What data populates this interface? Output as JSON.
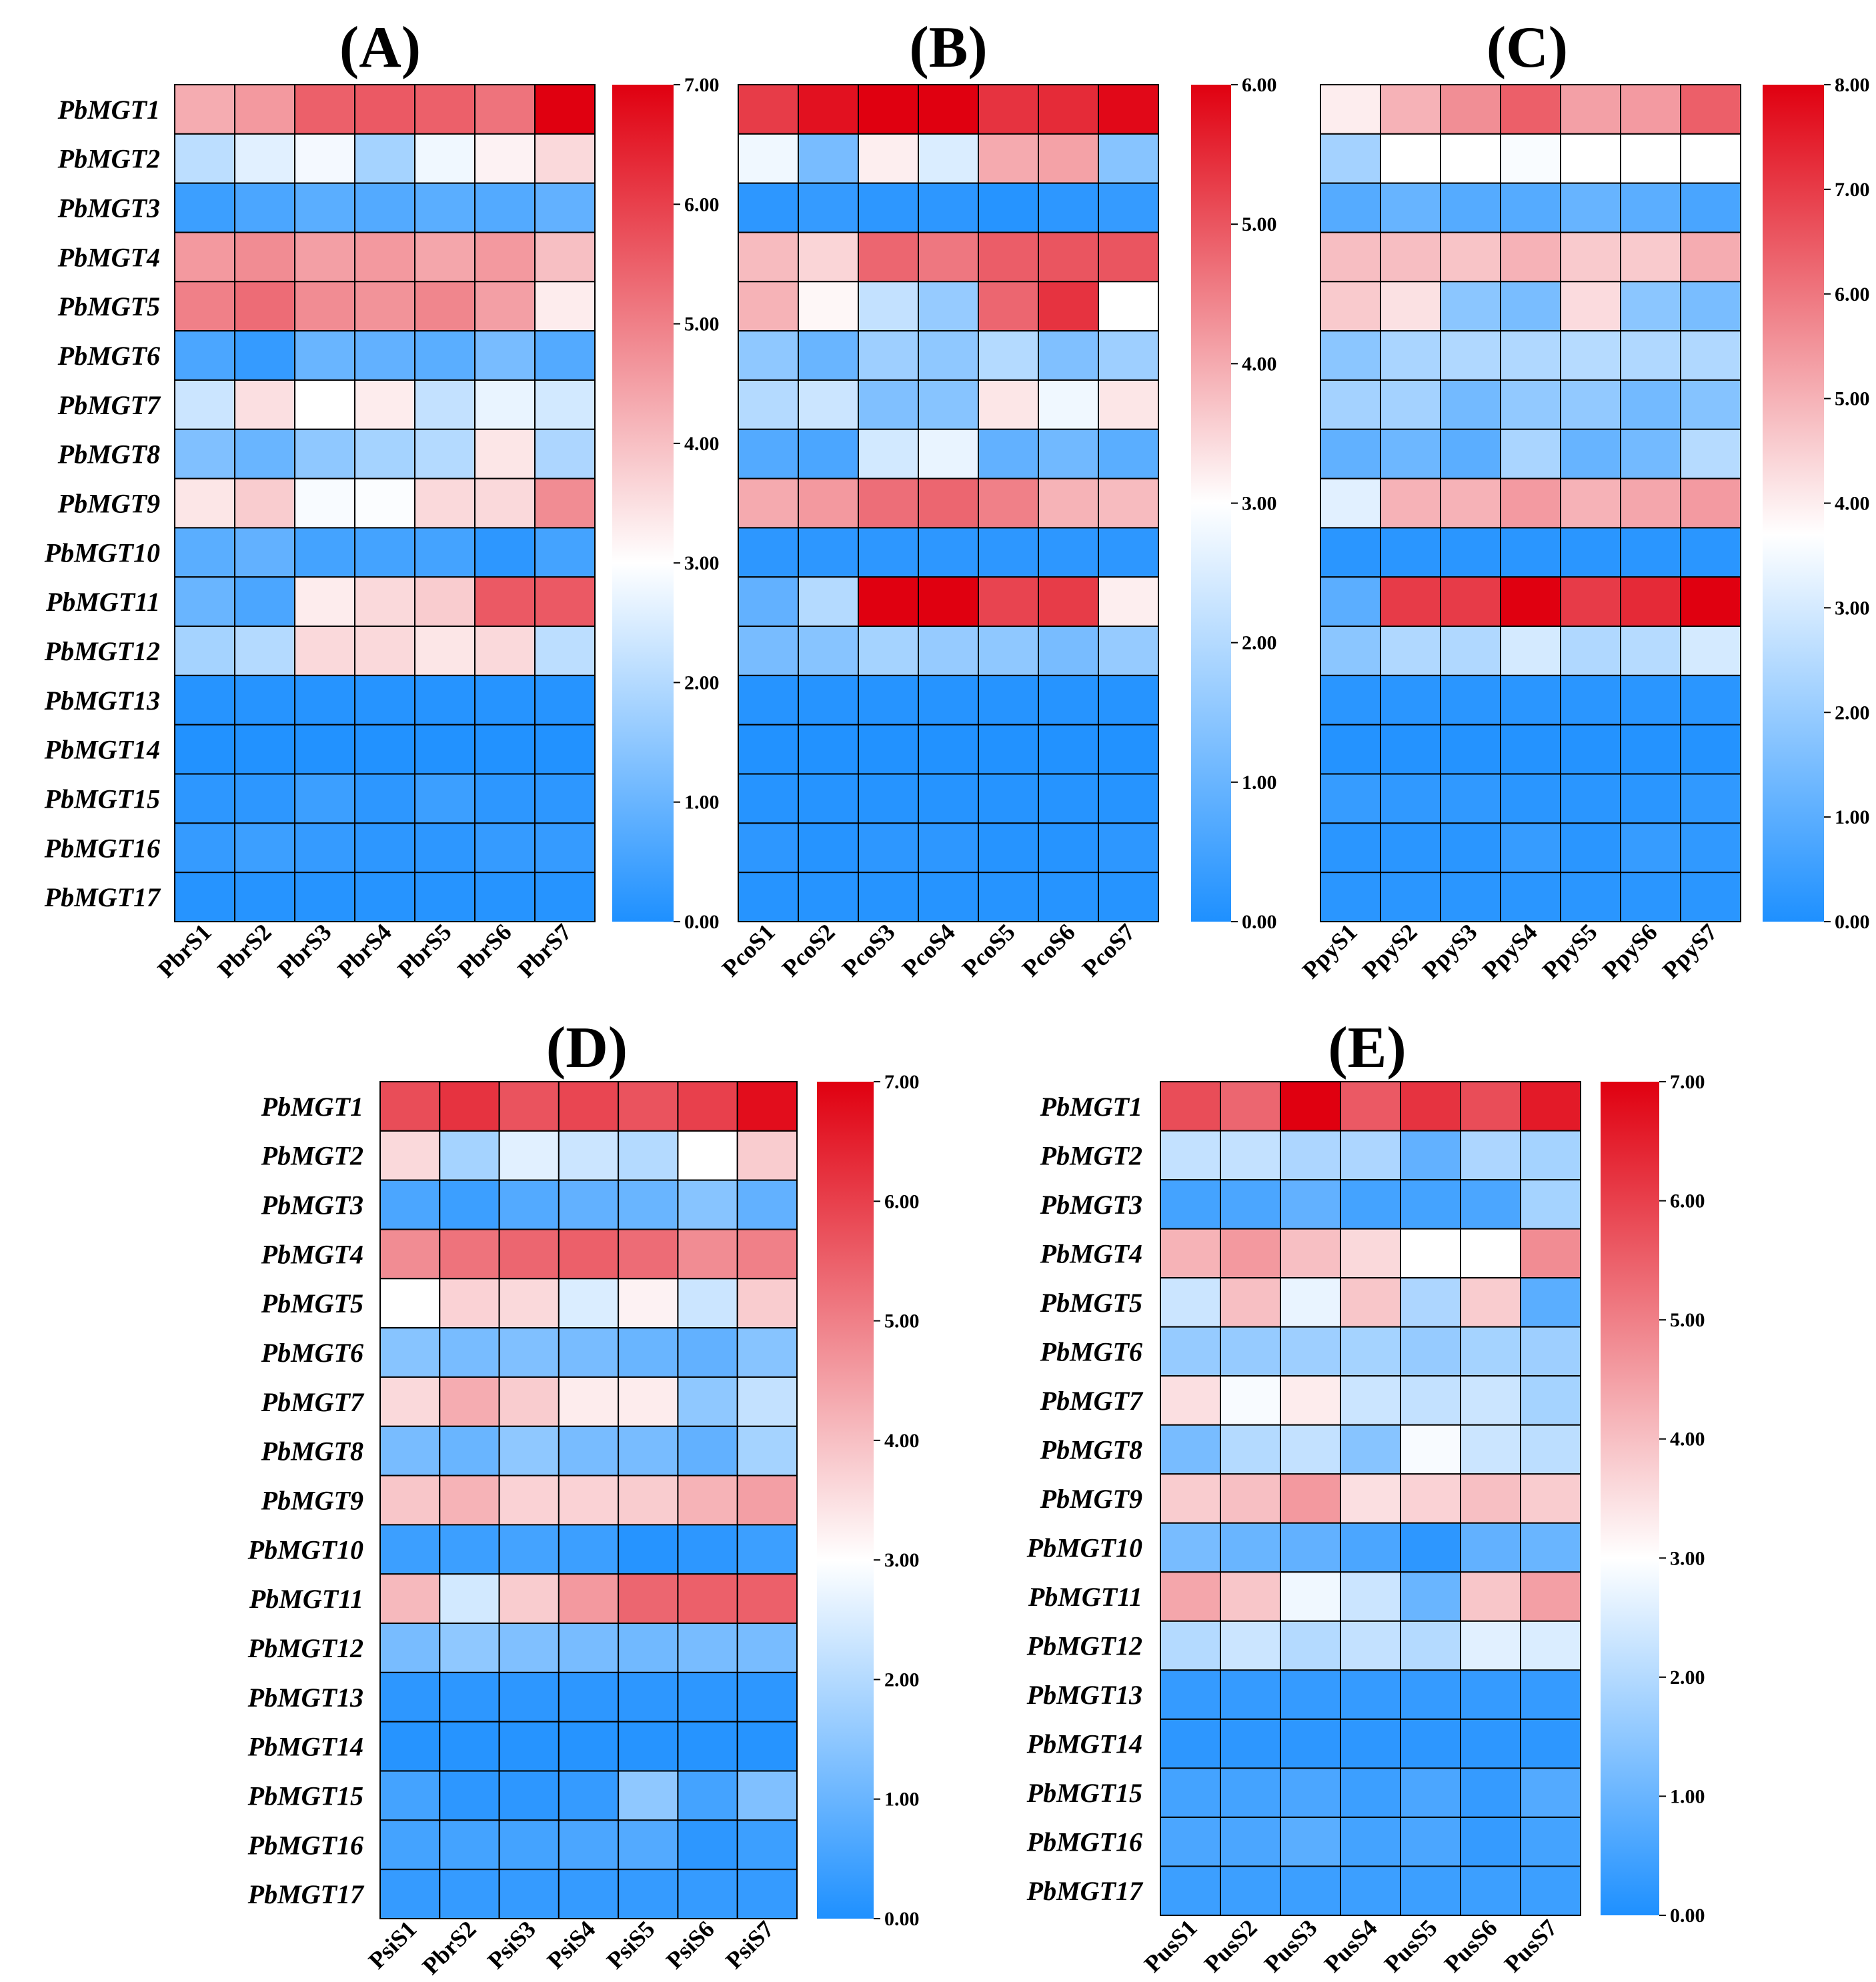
{
  "figure": {
    "colors": {
      "low": "#1E90FF",
      "mid": "#FFFFFF",
      "high": "#E00010",
      "border": "#000000"
    },
    "panels": [
      {
        "id": "A",
        "title": "(A)",
        "row_labels": [
          "PbMGT1",
          "PbMGT2",
          "PbMGT3",
          "PbMGT4",
          "PbMGT5",
          "PbMGT6",
          "PbMGT7",
          "PbMGT8",
          "PbMGT9",
          "PbMGT10",
          "PbMGT11",
          "PbMGT12",
          "PbMGT13",
          "PbMGT14",
          "PbMGT15",
          "PbMGT16",
          "PbMGT17"
        ],
        "col_labels": [
          "PbrS1",
          "PbrS2",
          "PbrS3",
          "PbrS4",
          "PbrS5",
          "PbrS6",
          "PbrS7"
        ],
        "scale": {
          "min": 0,
          "mid": 3.0,
          "max": 7.0,
          "ticks": [
            "7.00",
            "6.00",
            "5.00",
            "4.00",
            "3.00",
            "2.00",
            "1.00",
            "0.00"
          ]
        },
        "values": [
          [
            4.3,
            4.6,
            5.5,
            5.6,
            5.5,
            5.2,
            7.0
          ],
          [
            2.1,
            2.6,
            2.85,
            1.8,
            2.8,
            3.2,
            3.6
          ],
          [
            0.4,
            0.6,
            0.8,
            0.7,
            0.8,
            0.7,
            0.9
          ],
          [
            4.6,
            4.8,
            4.5,
            4.6,
            4.4,
            4.6,
            4.0
          ],
          [
            5.0,
            5.3,
            4.8,
            4.7,
            4.9,
            4.5,
            3.3
          ],
          [
            0.6,
            0.3,
            1.0,
            0.9,
            0.8,
            1.2,
            0.7
          ],
          [
            2.3,
            3.5,
            3.0,
            3.3,
            2.2,
            2.7,
            2.4
          ],
          [
            1.3,
            1.0,
            1.5,
            1.8,
            2.0,
            3.4,
            1.9
          ],
          [
            3.4,
            3.8,
            2.9,
            2.95,
            3.6,
            3.6,
            4.8
          ],
          [
            0.8,
            0.9,
            0.5,
            0.5,
            0.5,
            0.2,
            0.5
          ],
          [
            1.0,
            0.6,
            3.3,
            3.6,
            3.8,
            5.6,
            5.6
          ],
          [
            1.8,
            2.0,
            3.6,
            3.6,
            3.4,
            3.6,
            2.1
          ],
          [
            0.1,
            0.1,
            0.1,
            0.1,
            0.1,
            0.1,
            0.1
          ],
          [
            0.05,
            0.05,
            0.05,
            0.05,
            0.05,
            0.05,
            0.05
          ],
          [
            0.2,
            0.2,
            0.4,
            0.2,
            0.4,
            0.2,
            0.2
          ],
          [
            0.3,
            0.4,
            0.3,
            0.2,
            0.2,
            0.3,
            0.3
          ],
          [
            0.1,
            0.1,
            0.1,
            0.1,
            0.1,
            0.1,
            0.1
          ]
        ]
      },
      {
        "id": "B",
        "title": "(B)",
        "row_labels": [],
        "col_labels": [
          "PcoS1",
          "PcoS2",
          "PcoS3",
          "PcoS4",
          "PcoS5",
          "PcoS6",
          "PcoS7"
        ],
        "scale": {
          "min": 0,
          "mid": 3.0,
          "max": 6.0,
          "ticks": [
            "6.00",
            "5.00",
            "4.00",
            "3.00",
            "2.00",
            "1.00",
            "0.00"
          ]
        },
        "values": [
          [
            5.3,
            5.8,
            6.0,
            6.0,
            5.4,
            5.5,
            5.9
          ],
          [
            2.8,
            1.2,
            3.2,
            2.5,
            4.0,
            4.1,
            1.4
          ],
          [
            0.2,
            0.3,
            0.2,
            0.2,
            0.1,
            0.2,
            0.3
          ],
          [
            3.8,
            3.5,
            4.8,
            4.6,
            4.9,
            5.0,
            5.0
          ],
          [
            3.9,
            3.1,
            2.2,
            1.6,
            4.8,
            5.4,
            3.0
          ],
          [
            1.5,
            1.0,
            1.7,
            1.5,
            2.0,
            1.3,
            1.7
          ],
          [
            2.0,
            2.3,
            1.3,
            1.4,
            3.3,
            2.8,
            3.3
          ],
          [
            0.7,
            0.6,
            2.4,
            2.7,
            0.9,
            1.1,
            0.8
          ],
          [
            4.0,
            4.2,
            4.7,
            4.8,
            4.5,
            3.9,
            3.8
          ],
          [
            0.2,
            0.2,
            0.2,
            0.2,
            0.2,
            0.2,
            0.2
          ],
          [
            0.9,
            2.0,
            6.0,
            6.0,
            5.2,
            5.3,
            3.2
          ],
          [
            1.2,
            1.4,
            1.8,
            1.6,
            1.5,
            1.2,
            1.6
          ],
          [
            0.1,
            0.1,
            0.1,
            0.1,
            0.1,
            0.1,
            0.1
          ],
          [
            0.05,
            0.05,
            0.05,
            0.05,
            0.05,
            0.05,
            0.05
          ],
          [
            0.1,
            0.1,
            0.1,
            0.1,
            0.1,
            0.1,
            0.1
          ],
          [
            0.2,
            0.1,
            0.2,
            0.2,
            0.1,
            0.1,
            0.2
          ],
          [
            0.1,
            0.1,
            0.1,
            0.1,
            0.1,
            0.1,
            0.1
          ]
        ]
      },
      {
        "id": "C",
        "title": "(C)",
        "row_labels": [],
        "col_labels": [
          "PpyS1",
          "PpyS2",
          "PpyS3",
          "PpyS4",
          "PpyS5",
          "PpyS6",
          "PpyS7"
        ],
        "scale": {
          "min": 0,
          "mid": 3.7,
          "max": 8.0,
          "ticks": [
            "8.00",
            "7.00",
            "6.00",
            "5.00",
            "4.00",
            "3.00",
            "2.00",
            "1.00",
            "0.00"
          ]
        },
        "values": [
          [
            4.0,
            5.0,
            5.6,
            6.4,
            5.3,
            5.4,
            6.4
          ],
          [
            2.2,
            3.7,
            3.7,
            3.6,
            3.7,
            3.7,
            3.7
          ],
          [
            0.9,
            1.2,
            0.9,
            0.9,
            1.2,
            1.0,
            0.7
          ],
          [
            4.8,
            4.8,
            4.7,
            5.0,
            4.6,
            4.6,
            5.1
          ],
          [
            4.6,
            4.2,
            1.8,
            1.5,
            4.3,
            1.8,
            1.5
          ],
          [
            1.8,
            2.3,
            2.4,
            2.4,
            2.5,
            2.4,
            2.4
          ],
          [
            2.2,
            2.2,
            1.4,
            1.9,
            1.9,
            1.4,
            1.7
          ],
          [
            1.1,
            1.3,
            1.0,
            2.3,
            1.2,
            1.4,
            2.5
          ],
          [
            3.2,
            5.0,
            5.0,
            5.4,
            5.0,
            5.2,
            5.4
          ],
          [
            0.2,
            0.2,
            0.2,
            0.2,
            0.2,
            0.2,
            0.2
          ],
          [
            1.0,
            7.0,
            7.0,
            8.0,
            7.0,
            7.3,
            8.0
          ],
          [
            1.8,
            2.4,
            2.4,
            3.0,
            2.4,
            2.5,
            3.0
          ],
          [
            0.2,
            0.2,
            0.2,
            0.2,
            0.2,
            0.2,
            0.2
          ],
          [
            0.1,
            0.1,
            0.1,
            0.1,
            0.1,
            0.1,
            0.1
          ],
          [
            0.4,
            0.3,
            0.3,
            0.2,
            0.2,
            0.2,
            0.3
          ],
          [
            0.2,
            0.2,
            0.2,
            0.4,
            0.2,
            0.4,
            0.3
          ],
          [
            0.2,
            0.2,
            0.2,
            0.2,
            0.2,
            0.2,
            0.2
          ]
        ]
      },
      {
        "id": "D",
        "title": "(D)",
        "row_labels": [
          "PbMGT1",
          "PbMGT2",
          "PbMGT3",
          "PbMGT4",
          "PbMGT5",
          "PbMGT6",
          "PbMGT7",
          "PbMGT8",
          "PbMGT9",
          "PbMGT10",
          "PbMGT11",
          "PbMGT12",
          "PbMGT13",
          "PbMGT14",
          "PbMGT15",
          "PbMGT16",
          "PbMGT17"
        ],
        "col_labels": [
          "PsiS1",
          "PbrS2",
          "PsiS3",
          "PsiS4",
          "PsiS5",
          "PsiS6",
          "PsiS7"
        ],
        "scale": {
          "min": 0,
          "mid": 3.0,
          "max": 7.0,
          "ticks": [
            "7.00",
            "6.00",
            "5.00",
            "4.00",
            "3.00",
            "2.00",
            "1.00",
            "0.00"
          ]
        },
        "values": [
          [
            5.8,
            6.2,
            5.7,
            5.9,
            5.7,
            6.0,
            6.8
          ],
          [
            3.6,
            1.8,
            2.6,
            2.3,
            2.0,
            3.0,
            3.8
          ],
          [
            0.6,
            0.4,
            0.7,
            0.9,
            1.0,
            1.4,
            0.9
          ],
          [
            4.8,
            5.2,
            5.4,
            5.5,
            5.3,
            4.8,
            5.0
          ],
          [
            3.0,
            3.7,
            3.6,
            2.5,
            3.2,
            2.3,
            3.8
          ],
          [
            1.4,
            1.2,
            1.3,
            1.2,
            1.0,
            0.9,
            1.4
          ],
          [
            3.6,
            4.3,
            3.8,
            3.3,
            3.3,
            1.5,
            2.2
          ],
          [
            1.2,
            1.0,
            1.5,
            1.2,
            1.2,
            0.9,
            1.8
          ],
          [
            3.9,
            4.2,
            3.7,
            3.7,
            3.8,
            4.2,
            4.5
          ],
          [
            0.4,
            0.4,
            0.5,
            0.4,
            0.1,
            0.2,
            0.4
          ],
          [
            4.1,
            2.4,
            3.8,
            4.6,
            5.4,
            5.5,
            5.5
          ],
          [
            1.2,
            1.5,
            1.3,
            1.2,
            1.1,
            1.2,
            1.2
          ],
          [
            0.2,
            0.2,
            0.2,
            0.2,
            0.2,
            0.2,
            0.2
          ],
          [
            0.1,
            0.1,
            0.1,
            0.1,
            0.1,
            0.1,
            0.1
          ],
          [
            0.5,
            0.2,
            0.2,
            0.3,
            1.5,
            0.5,
            1.3
          ],
          [
            0.5,
            0.5,
            0.5,
            0.6,
            0.7,
            0.2,
            0.4
          ],
          [
            0.3,
            0.3,
            0.3,
            0.3,
            0.3,
            0.3,
            0.3
          ]
        ]
      },
      {
        "id": "E",
        "title": "(E)",
        "row_labels": [
          "PbMGT1",
          "PbMGT2",
          "PbMGT3",
          "PbMGT4",
          "PbMGT5",
          "PbMGT6",
          "PbMGT7",
          "PbMGT8",
          "PbMGT9",
          "PbMGT10",
          "PbMGT11",
          "PbMGT12",
          "PbMGT13",
          "PbMGT14",
          "PbMGT15",
          "PbMGT16",
          "PbMGT17"
        ],
        "col_labels": [
          "PusS1",
          "PusS2",
          "PusS3",
          "PusS4",
          "PusS5",
          "PusS6",
          "PusS7"
        ],
        "scale": {
          "min": 0,
          "mid": 3.0,
          "max": 7.0,
          "ticks": [
            "7.00",
            "6.00",
            "5.00",
            "4.00",
            "3.00",
            "2.00",
            "1.00",
            "0.00"
          ]
        },
        "values": [
          [
            5.8,
            5.4,
            7.0,
            5.6,
            6.2,
            5.8,
            6.6
          ],
          [
            2.2,
            2.2,
            1.9,
            1.9,
            0.9,
            1.9,
            1.8
          ],
          [
            0.5,
            0.6,
            0.9,
            0.5,
            0.5,
            0.6,
            1.8
          ],
          [
            4.2,
            4.6,
            4.0,
            3.6,
            3.0,
            3.0,
            4.8
          ],
          [
            2.3,
            4.0,
            2.7,
            3.9,
            1.9,
            3.8,
            0.8
          ],
          [
            1.6,
            1.6,
            1.7,
            1.8,
            1.6,
            1.8,
            1.7
          ],
          [
            3.5,
            2.9,
            3.3,
            2.3,
            2.2,
            2.3,
            1.8
          ],
          [
            1.2,
            2.0,
            2.2,
            1.4,
            2.9,
            2.3,
            2.1
          ],
          [
            3.8,
            4.0,
            4.6,
            3.5,
            3.7,
            4.0,
            3.8
          ],
          [
            1.2,
            1.0,
            0.9,
            0.6,
            0.2,
            0.9,
            1.0
          ],
          [
            4.4,
            3.9,
            2.8,
            2.3,
            1.0,
            3.9,
            4.5
          ],
          [
            2.0,
            2.3,
            2.0,
            2.2,
            2.0,
            2.6,
            2.5
          ],
          [
            0.3,
            0.3,
            0.3,
            0.3,
            0.3,
            0.3,
            0.3
          ],
          [
            0.2,
            0.2,
            0.2,
            0.2,
            0.2,
            0.2,
            0.2
          ],
          [
            0.5,
            0.5,
            0.6,
            0.4,
            0.6,
            0.3,
            0.7
          ],
          [
            0.6,
            0.6,
            0.8,
            0.5,
            0.6,
            0.3,
            0.5
          ],
          [
            0.4,
            0.4,
            0.4,
            0.4,
            0.4,
            0.4,
            0.4
          ]
        ]
      }
    ]
  },
  "chart_data": [
    {
      "type": "heatmap",
      "title": "(A)",
      "y": [
        "PbMGT1",
        "PbMGT2",
        "PbMGT3",
        "PbMGT4",
        "PbMGT5",
        "PbMGT6",
        "PbMGT7",
        "PbMGT8",
        "PbMGT9",
        "PbMGT10",
        "PbMGT11",
        "PbMGT12",
        "PbMGT13",
        "PbMGT14",
        "PbMGT15",
        "PbMGT16",
        "PbMGT17"
      ],
      "x": [
        "PbrS1",
        "PbrS2",
        "PbrS3",
        "PbrS4",
        "PbrS5",
        "PbrS6",
        "PbrS7"
      ],
      "colorbar_range": [
        0,
        7
      ],
      "colorscale": "blue-white-red"
    },
    {
      "type": "heatmap",
      "title": "(B)",
      "y": [
        "PbMGT1",
        "PbMGT2",
        "PbMGT3",
        "PbMGT4",
        "PbMGT5",
        "PbMGT6",
        "PbMGT7",
        "PbMGT8",
        "PbMGT9",
        "PbMGT10",
        "PbMGT11",
        "PbMGT12",
        "PbMGT13",
        "PbMGT14",
        "PbMGT15",
        "PbMGT16",
        "PbMGT17"
      ],
      "x": [
        "PcoS1",
        "PcoS2",
        "PcoS3",
        "PcoS4",
        "PcoS5",
        "PcoS6",
        "PcoS7"
      ],
      "colorbar_range": [
        0,
        6
      ],
      "colorscale": "blue-white-red"
    },
    {
      "type": "heatmap",
      "title": "(C)",
      "y": [
        "PbMGT1",
        "PbMGT2",
        "PbMGT3",
        "PbMGT4",
        "PbMGT5",
        "PbMGT6",
        "PbMGT7",
        "PbMGT8",
        "PbMGT9",
        "PbMGT10",
        "PbMGT11",
        "PbMGT12",
        "PbMGT13",
        "PbMGT14",
        "PbMGT15",
        "PbMGT16",
        "PbMGT17"
      ],
      "x": [
        "PpyS1",
        "PpyS2",
        "PpyS3",
        "PpyS4",
        "PpyS5",
        "PpyS6",
        "PpyS7"
      ],
      "colorbar_range": [
        0,
        8
      ],
      "colorscale": "blue-white-red"
    },
    {
      "type": "heatmap",
      "title": "(D)",
      "y": [
        "PbMGT1",
        "PbMGT2",
        "PbMGT3",
        "PbMGT4",
        "PbMGT5",
        "PbMGT6",
        "PbMGT7",
        "PbMGT8",
        "PbMGT9",
        "PbMGT10",
        "PbMGT11",
        "PbMGT12",
        "PbMGT13",
        "PbMGT14",
        "PbMGT15",
        "PbMGT16",
        "PbMGT17"
      ],
      "x": [
        "PsiS1",
        "PbrS2",
        "PsiS3",
        "PsiS4",
        "PsiS5",
        "PsiS6",
        "PsiS7"
      ],
      "colorbar_range": [
        0,
        7
      ],
      "colorscale": "blue-white-red"
    },
    {
      "type": "heatmap",
      "title": "(E)",
      "y": [
        "PbMGT1",
        "PbMGT2",
        "PbMGT3",
        "PbMGT4",
        "PbMGT5",
        "PbMGT6",
        "PbMGT7",
        "PbMGT8",
        "PbMGT9",
        "PbMGT10",
        "PbMGT11",
        "PbMGT12",
        "PbMGT13",
        "PbMGT14",
        "PbMGT15",
        "PbMGT16",
        "PbMGT17"
      ],
      "x": [
        "PusS1",
        "PusS2",
        "PusS3",
        "PusS4",
        "PusS5",
        "PusS6",
        "PusS7"
      ],
      "colorbar_range": [
        0,
        7
      ],
      "colorscale": "blue-white-red"
    }
  ]
}
